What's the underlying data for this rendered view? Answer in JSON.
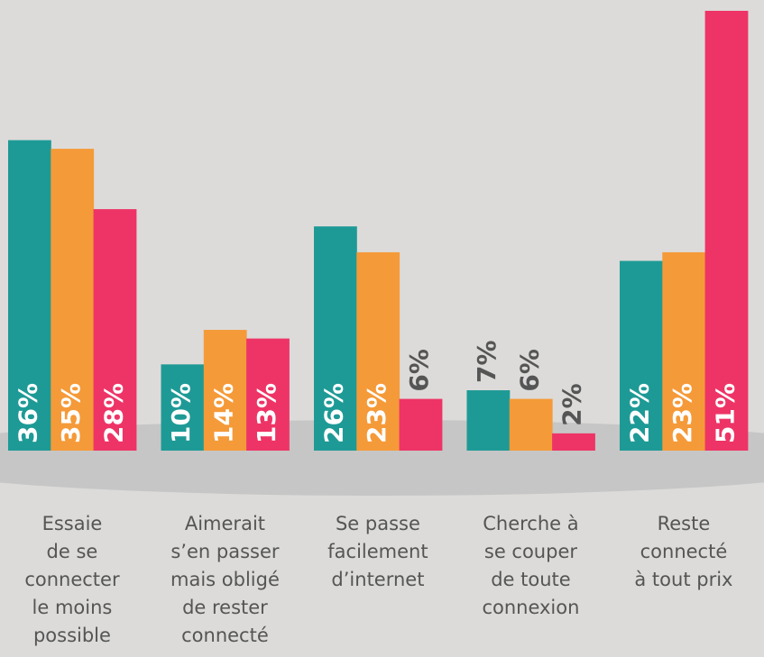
{
  "chart_data": {
    "type": "bar",
    "categories": [
      "Essaie\nde se\nconnecter\nle moins\npossible",
      "Aimerait\ns’en passer\nmais obligé\nde rester\nconnecté",
      "Se passe\nfacilement\nd’internet",
      "Cherche à\nse couper\nde toute\nconnexion",
      "Reste\nconnecté\nà tout prix"
    ],
    "series": [
      {
        "color": "#1e9a96",
        "values": [
          36,
          10,
          26,
          7,
          22
        ],
        "value_labels": [
          "36%",
          "10%",
          "26%",
          "7%",
          "22%"
        ]
      },
      {
        "color": "#f59a38",
        "values": [
          35,
          14,
          23,
          6,
          23
        ],
        "value_labels": [
          "35%",
          "14%",
          "23%",
          "6%",
          "23%"
        ]
      },
      {
        "color": "#ee3466",
        "values": [
          28,
          13,
          6,
          2,
          51
        ],
        "value_labels": [
          "28%",
          "13%",
          "6%",
          "2%",
          "51%"
        ]
      }
    ]
  }
}
